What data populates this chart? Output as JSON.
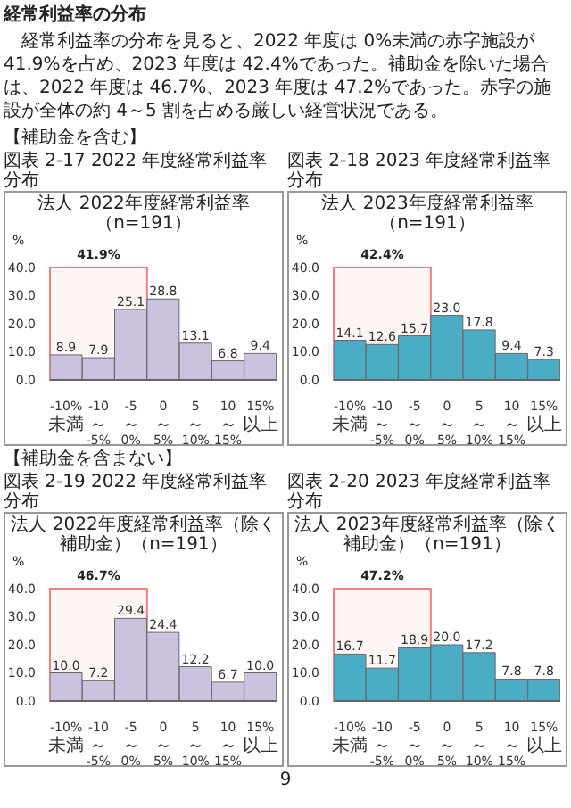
{
  "chart_data": [
    {
      "type": "bar",
      "title": "図表 2-17 2022 年度経常利益率分布",
      "subtitle": "法人 2022年度経常利益率（n=191）",
      "ylabel": "%",
      "annotations": [
        "経常利益率の分布",
        "経常利益率の分布を見ると、2022 年度は 0%未満の赤字施設が 41.9%を占め、2023 年度は 42.4%であった。補助金を除いた場合は、2022 年度は 46.7%、2023 年度は 47.2%であった。赤字の施設が全体の約 4～5 割を占める厳しい経営状況である。",
        "【補助金を含む】"
      ],
      "categories": [
        "-10%\n未満",
        "-10～\n-5%",
        "-5～\n0%",
        "0～\n5%",
        "5～\n10%",
        "10～\n15%",
        "15%\n以上"
      ],
      "values": [
        8.9,
        7.9,
        25.1,
        28.8,
        13.1,
        6.8,
        9.4
      ],
      "value_labels": [
        "8.9",
        "7.9",
        "25.1",
        "28.8",
        "13.1",
        "6.8",
        "9.4"
      ],
      "color": "#cbc2e0",
      "ylim": [
        0,
        40
      ],
      "yticks": [
        {
          "value": 0,
          "label": "0.0"
        },
        {
          "value": 10,
          "label": "10.0"
        },
        {
          "value": 20,
          "label": "20.0"
        },
        {
          "value": 30,
          "label": "30.0"
        },
        {
          "value": 40,
          "label": "40.0"
        }
      ],
      "bands": [
        {
          "axis": "x",
          "from": "-10%\n未満",
          "to": "-5～\n0%",
          "label": "41.9%",
          "color": "#f08080"
        }
      ]
    },
    {
      "type": "bar",
      "title": "図表 2-18 2023 年度経常利益率分布",
      "subtitle": "法人 2023年度経常利益率（n=191）",
      "ylabel": "%",
      "categories": [
        "-10%\n未満",
        "-10～\n-5%",
        "-5～\n0%",
        "0～\n5%",
        "5～\n10%",
        "10～\n15%",
        "15%\n以上"
      ],
      "values": [
        14.1,
        12.6,
        15.7,
        23.0,
        17.8,
        9.4,
        7.3
      ],
      "value_labels": [
        "14.1",
        "12.6",
        "15.7",
        "23.0",
        "17.8",
        "9.4",
        "7.3"
      ],
      "color": "#4bacc6",
      "ylim": [
        0,
        40
      ],
      "yticks": [
        {
          "value": 0,
          "label": "0.0"
        },
        {
          "value": 10,
          "label": "10.0"
        },
        {
          "value": 20,
          "label": "20.0"
        },
        {
          "value": 30,
          "label": "30.0"
        },
        {
          "value": 40,
          "label": "40.0"
        }
      ],
      "bands": [
        {
          "axis": "x",
          "from": "-10%\n未満",
          "to": "-5～\n0%",
          "label": "42.4%",
          "color": "#f08080"
        }
      ]
    },
    {
      "type": "bar",
      "title": "図表 2-19 2022 年度経常利益率分布",
      "subtitle": "法人 2022年度経常利益率（除く補助金）（n=191）",
      "ylabel": "%",
      "annotations": [
        "【補助金を含まない】"
      ],
      "categories": [
        "-10%\n未満",
        "-10～\n-5%",
        "-5～\n0%",
        "0～\n5%",
        "5～\n10%",
        "10～\n15%",
        "15%\n以上"
      ],
      "values": [
        10.0,
        7.2,
        29.4,
        24.4,
        12.2,
        6.7,
        10.0
      ],
      "value_labels": [
        "10.0",
        "7.2",
        "29.4",
        "24.4",
        "12.2",
        "6.7",
        "10.0"
      ],
      "color": "#cbc2e0",
      "ylim": [
        0,
        40
      ],
      "yticks": [
        {
          "value": 0,
          "label": "0.0"
        },
        {
          "value": 10,
          "label": "10.0"
        },
        {
          "value": 20,
          "label": "20.0"
        },
        {
          "value": 30,
          "label": "30.0"
        },
        {
          "value": 40,
          "label": "40.0"
        }
      ],
      "bands": [
        {
          "axis": "x",
          "from": "-10%\n未満",
          "to": "-5～\n0%",
          "label": "46.7%",
          "color": "#f08080"
        }
      ]
    },
    {
      "type": "bar",
      "title": "図表 2-20 2023 年度経常利益率分布",
      "subtitle": "法人 2023年度経常利益率（除く補助金）（n=191）",
      "ylabel": "%",
      "annotations": [
        "9"
      ],
      "categories": [
        "-10%\n未満",
        "-10～\n-5%",
        "-5～\n0%",
        "0～\n5%",
        "5～\n10%",
        "10～\n15%",
        "15%\n以上"
      ],
      "values": [
        16.7,
        11.7,
        18.9,
        20.0,
        17.2,
        7.8,
        7.8
      ],
      "value_labels": [
        "16.7",
        "11.7",
        "18.9",
        "20.0",
        "17.2",
        "7.8",
        "7.8"
      ],
      "color": "#4bacc6",
      "ylim": [
        0,
        40
      ],
      "yticks": [
        {
          "value": 0,
          "label": "0.0"
        },
        {
          "value": 10,
          "label": "10.0"
        },
        {
          "value": 20,
          "label": "20.0"
        },
        {
          "value": 30,
          "label": "30.0"
        },
        {
          "value": 40,
          "label": "40.0"
        }
      ],
      "bands": [
        {
          "axis": "x",
          "from": "-10%\n未満",
          "to": "-5～\n0%",
          "label": "47.2%",
          "color": "#f08080"
        }
      ]
    }
  ]
}
